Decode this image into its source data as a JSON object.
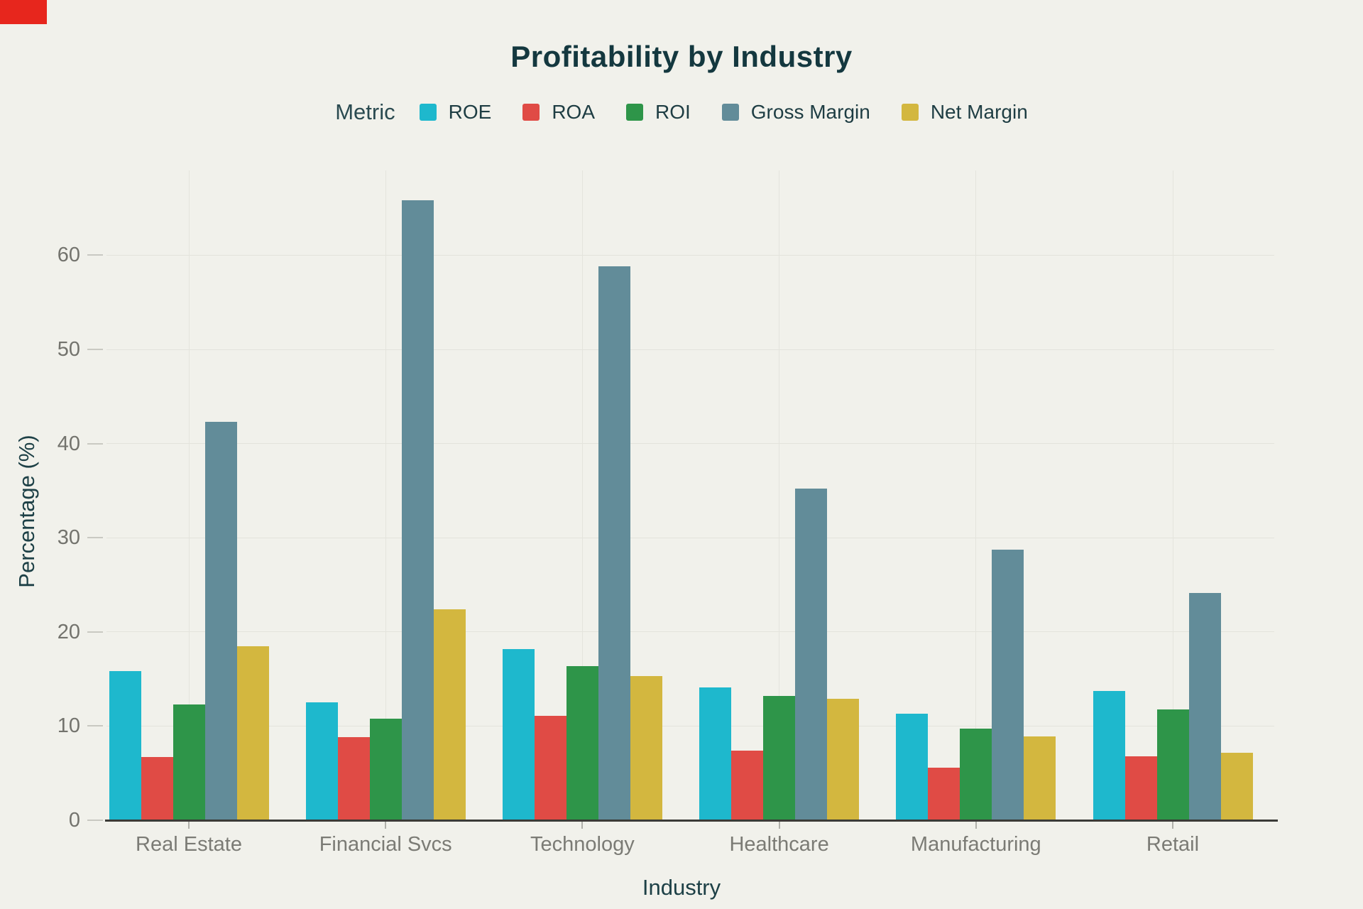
{
  "colors": {
    "background": "#f1f1eb",
    "recording_indicator": "#e7261d",
    "title_text": "#14383f",
    "axis_title_text": "#1d4046",
    "tick_text": "#73736d",
    "axis_line": "#3b3b37",
    "gridline": "#e3e3dc"
  },
  "chart_data": {
    "type": "bar",
    "title": "Profitability by Industry",
    "legend_title": "Metric",
    "legend_position": "top",
    "grid": true,
    "xlabel": "Industry",
    "ylabel": "Percentage (%)",
    "yticks": [
      0,
      10,
      20,
      30,
      40,
      50,
      60
    ],
    "ylim": [
      0,
      69
    ],
    "categories": [
      "Real Estate",
      "Financial Svcs",
      "Technology",
      "Healthcare",
      "Manufacturing",
      "Retail"
    ],
    "series": [
      {
        "name": "ROE",
        "color": "#1eb8cd",
        "values": [
          15.8,
          12.5,
          18.2,
          14.1,
          11.3,
          13.7
        ]
      },
      {
        "name": "ROA",
        "color": "#e04b45",
        "values": [
          6.7,
          8.8,
          11.1,
          7.4,
          5.6,
          6.8
        ]
      },
      {
        "name": "ROI",
        "color": "#2e9549",
        "values": [
          12.3,
          10.8,
          16.4,
          13.2,
          9.7,
          11.8
        ]
      },
      {
        "name": "Gross Margin",
        "color": "#628c99",
        "values": [
          42.3,
          65.8,
          58.8,
          35.2,
          28.7,
          24.1
        ]
      },
      {
        "name": "Net Margin",
        "color": "#d3b73f",
        "values": [
          18.5,
          22.4,
          15.3,
          12.9,
          8.9,
          7.2
        ]
      }
    ]
  }
}
